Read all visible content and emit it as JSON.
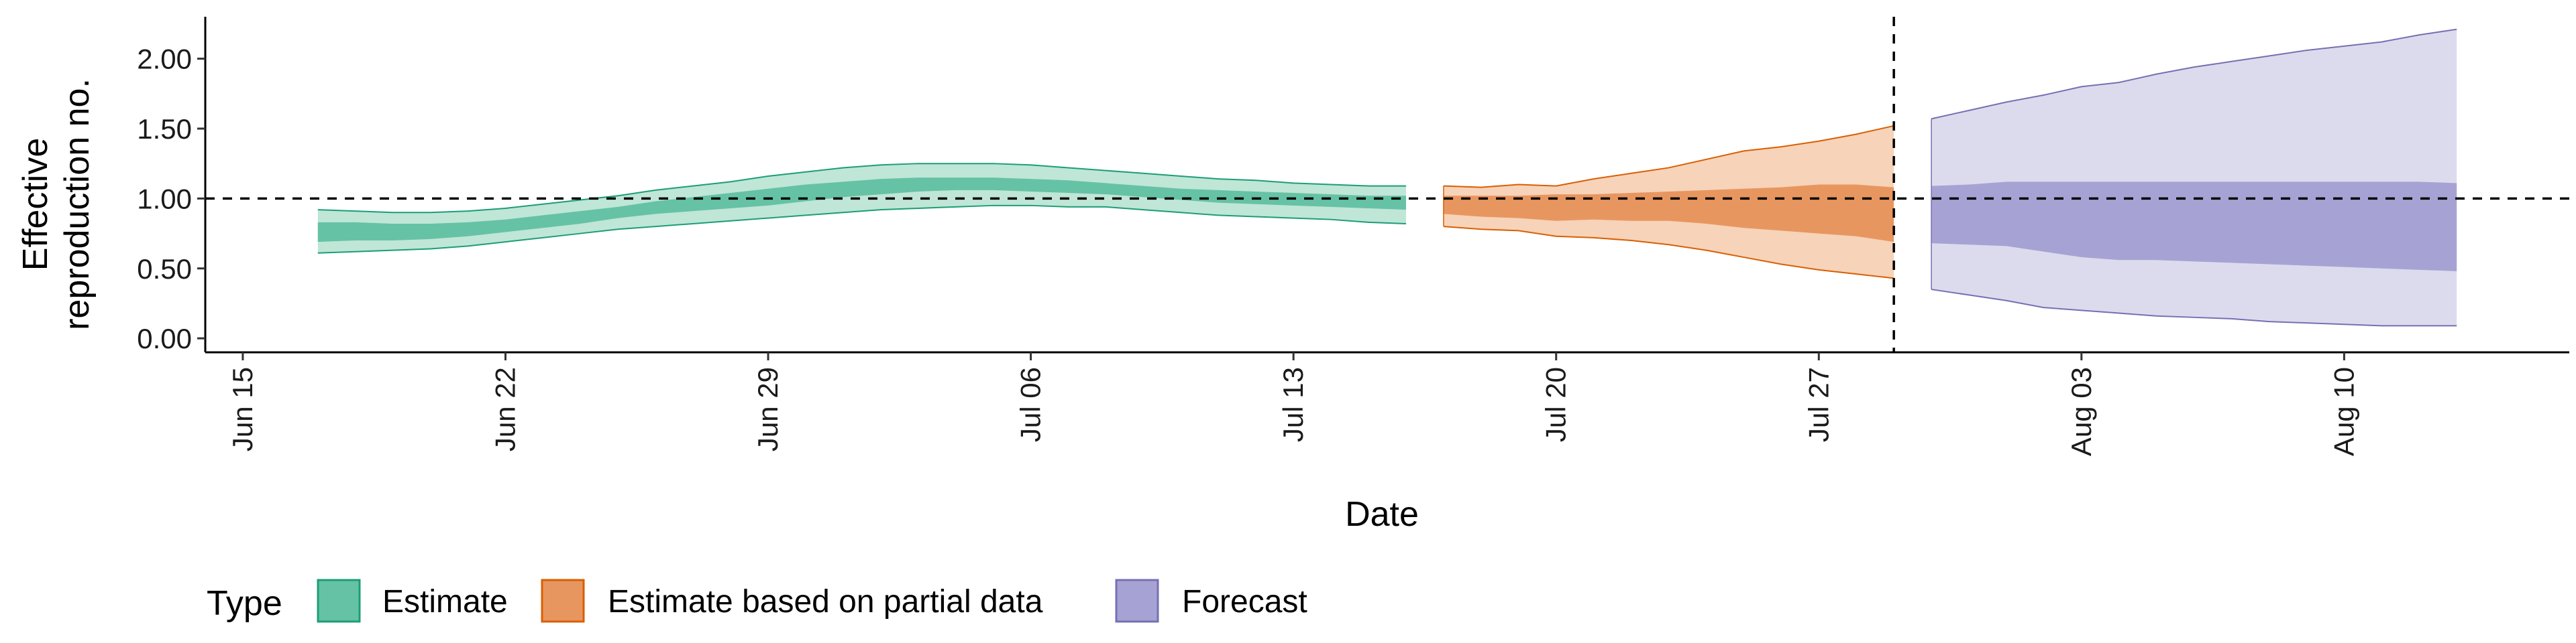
{
  "chart_data": {
    "type": "area",
    "xlabel": "Date",
    "ylabel_lines": [
      "Effective",
      "reproduction no."
    ],
    "x_ticks": [
      "Jun 15",
      "Jun 22",
      "Jun 29",
      "Jul 06",
      "Jul 13",
      "Jul 20",
      "Jul 27",
      "Aug 03",
      "Aug 10"
    ],
    "y_ticks": [
      "0.00",
      "0.50",
      "1.00",
      "1.50",
      "2.00"
    ],
    "xlim": [
      "2020-06-14",
      "2020-08-16"
    ],
    "ylim": [
      -0.1,
      2.3
    ],
    "reference_line_y": 1.0,
    "vertical_line_x": "2020-07-29",
    "grid": false,
    "legend_position": "bottom-left",
    "legend_title": "Type",
    "series": [
      {
        "name": "Estimate",
        "fill": "#66c2a5",
        "outer_fill": "#bfe6d6",
        "stroke": "#1b9e77",
        "x": [
          "2020-06-17",
          "2020-06-18",
          "2020-06-19",
          "2020-06-20",
          "2020-06-21",
          "2020-06-22",
          "2020-06-23",
          "2020-06-24",
          "2020-06-25",
          "2020-06-26",
          "2020-06-27",
          "2020-06-28",
          "2020-06-29",
          "2020-06-30",
          "2020-07-01",
          "2020-07-02",
          "2020-07-03",
          "2020-07-04",
          "2020-07-05",
          "2020-07-06",
          "2020-07-07",
          "2020-07-08",
          "2020-07-09",
          "2020-07-10",
          "2020-07-11",
          "2020-07-12",
          "2020-07-13",
          "2020-07-14",
          "2020-07-15",
          "2020-07-16"
        ],
        "lower_90": [
          0.61,
          0.62,
          0.63,
          0.64,
          0.66,
          0.69,
          0.72,
          0.75,
          0.78,
          0.8,
          0.82,
          0.84,
          0.86,
          0.88,
          0.9,
          0.92,
          0.93,
          0.94,
          0.95,
          0.95,
          0.94,
          0.94,
          0.92,
          0.9,
          0.88,
          0.87,
          0.86,
          0.85,
          0.83,
          0.82
        ],
        "upper_90": [
          0.92,
          0.91,
          0.9,
          0.9,
          0.91,
          0.93,
          0.96,
          0.99,
          1.02,
          1.06,
          1.09,
          1.12,
          1.16,
          1.19,
          1.22,
          1.24,
          1.25,
          1.25,
          1.25,
          1.24,
          1.22,
          1.2,
          1.18,
          1.16,
          1.14,
          1.13,
          1.11,
          1.1,
          1.09,
          1.09
        ],
        "lower_50": [
          0.69,
          0.7,
          0.7,
          0.71,
          0.73,
          0.76,
          0.79,
          0.82,
          0.86,
          0.89,
          0.91,
          0.93,
          0.95,
          0.98,
          1.01,
          1.03,
          1.05,
          1.06,
          1.06,
          1.05,
          1.04,
          1.03,
          1.01,
          0.99,
          0.97,
          0.96,
          0.95,
          0.94,
          0.93,
          0.92
        ],
        "upper_50": [
          0.83,
          0.83,
          0.82,
          0.82,
          0.83,
          0.85,
          0.88,
          0.91,
          0.94,
          0.98,
          1.01,
          1.04,
          1.07,
          1.1,
          1.12,
          1.14,
          1.15,
          1.15,
          1.15,
          1.14,
          1.13,
          1.11,
          1.09,
          1.07,
          1.06,
          1.05,
          1.04,
          1.03,
          1.02,
          1.02
        ]
      },
      {
        "name": "Estimate based on partial data",
        "fill": "#e89660",
        "outer_fill": "#f6d3b9",
        "stroke": "#d95f02",
        "x": [
          "2020-07-17",
          "2020-07-18",
          "2020-07-19",
          "2020-07-20",
          "2020-07-21",
          "2020-07-22",
          "2020-07-23",
          "2020-07-24",
          "2020-07-25",
          "2020-07-26",
          "2020-07-27",
          "2020-07-28",
          "2020-07-29"
        ],
        "lower_90": [
          0.8,
          0.78,
          0.77,
          0.73,
          0.72,
          0.7,
          0.67,
          0.63,
          0.58,
          0.53,
          0.49,
          0.46,
          0.43
        ],
        "upper_90": [
          1.09,
          1.08,
          1.1,
          1.09,
          1.14,
          1.18,
          1.22,
          1.28,
          1.34,
          1.37,
          1.41,
          1.46,
          1.52
        ],
        "lower_50": [
          0.89,
          0.87,
          0.86,
          0.84,
          0.85,
          0.84,
          0.84,
          0.82,
          0.79,
          0.77,
          0.75,
          0.73,
          0.69
        ],
        "upper_50": [
          1.02,
          1.02,
          1.02,
          1.03,
          1.03,
          1.04,
          1.05,
          1.06,
          1.07,
          1.08,
          1.1,
          1.1,
          1.08
        ]
      },
      {
        "name": "Forecast",
        "fill": "#a6a3d4",
        "outer_fill": "#dcdbed",
        "stroke": "#7570b3",
        "x": [
          "2020-07-30",
          "2020-07-31",
          "2020-08-01",
          "2020-08-02",
          "2020-08-03",
          "2020-08-04",
          "2020-08-05",
          "2020-08-06",
          "2020-08-07",
          "2020-08-08",
          "2020-08-09",
          "2020-08-10",
          "2020-08-11",
          "2020-08-12",
          "2020-08-13"
        ],
        "lower_90": [
          0.35,
          0.31,
          0.27,
          0.22,
          0.2,
          0.18,
          0.16,
          0.15,
          0.14,
          0.12,
          0.11,
          0.1,
          0.09,
          0.09,
          0.09
        ],
        "upper_90": [
          1.57,
          1.63,
          1.69,
          1.74,
          1.8,
          1.83,
          1.89,
          1.94,
          1.98,
          2.02,
          2.06,
          2.09,
          2.12,
          2.17,
          2.21
        ],
        "lower_50": [
          0.68,
          0.67,
          0.66,
          0.62,
          0.58,
          0.56,
          0.56,
          0.55,
          0.54,
          0.53,
          0.52,
          0.51,
          0.5,
          0.49,
          0.48
        ],
        "upper_50": [
          1.09,
          1.1,
          1.12,
          1.12,
          1.12,
          1.12,
          1.12,
          1.12,
          1.12,
          1.12,
          1.12,
          1.12,
          1.12,
          1.12,
          1.11
        ]
      }
    ]
  }
}
